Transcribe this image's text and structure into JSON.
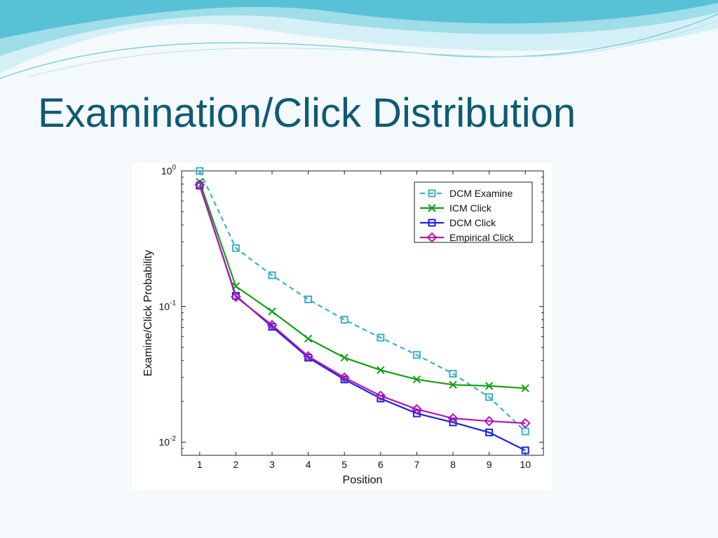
{
  "slide": {
    "title": "Examination/Click Distribution"
  },
  "colors": {
    "title": "#0f5a73",
    "background": "#f4f9fb",
    "wave_light": "#cdeef4",
    "wave_mid": "#8fd8e6",
    "wave_dark": "#3fb4cc"
  },
  "chart_data": {
    "type": "line",
    "xlabel": "Position",
    "ylabel": "Examine/Click Probability",
    "x": [
      1,
      2,
      3,
      4,
      5,
      6,
      7,
      8,
      9,
      10
    ],
    "xlim": [
      0.5,
      10.5
    ],
    "ylim": [
      0.008,
      1
    ],
    "yscale": "log",
    "y_tick_labels": [
      {
        "base": "10",
        "exp": "0",
        "value": 1
      },
      {
        "base": "10",
        "exp": "-1",
        "value": 0.1
      },
      {
        "base": "10",
        "exp": "-2",
        "value": 0.01
      }
    ],
    "grid": false,
    "legend_position": "top-right",
    "series": [
      {
        "name": "DCM Examine",
        "color": "#3fb1c1",
        "dashed": true,
        "marker": "square",
        "values": [
          1.0,
          0.27,
          0.17,
          0.113,
          0.08,
          0.059,
          0.044,
          0.032,
          0.0215,
          0.012
        ]
      },
      {
        "name": "ICM Click",
        "color": "#12a012",
        "dashed": false,
        "marker": "x",
        "values": [
          0.83,
          0.141,
          0.092,
          0.058,
          0.042,
          0.034,
          0.029,
          0.0265,
          0.026,
          0.025
        ]
      },
      {
        "name": "DCM Click",
        "color": "#1a24e0",
        "dashed": false,
        "marker": "square",
        "values": [
          0.78,
          0.12,
          0.071,
          0.042,
          0.029,
          0.021,
          0.0163,
          0.014,
          0.0118,
          0.0087
        ]
      },
      {
        "name": "Empirical Click",
        "color": "#b218b2",
        "dashed": false,
        "marker": "diamond",
        "values": [
          0.79,
          0.118,
          0.073,
          0.043,
          0.03,
          0.022,
          0.0175,
          0.015,
          0.0143,
          0.0138
        ]
      }
    ]
  }
}
